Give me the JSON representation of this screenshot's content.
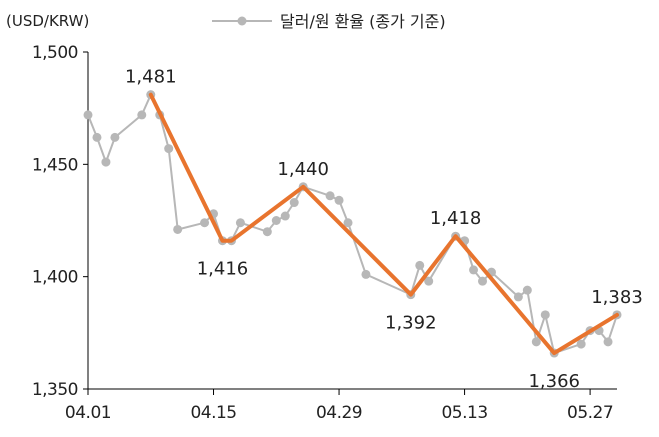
{
  "chart_data": {
    "type": "line",
    "unit_label": "(USD/KRW)",
    "legend": "달러/원 환율 (종가 기준)",
    "ylim": [
      1350,
      1500
    ],
    "yticks": [
      1500,
      1450,
      1400,
      1350
    ],
    "ytick_labels": [
      "1,500",
      "1,450",
      "1,400",
      "1,350"
    ],
    "xlim": [
      "2025-04-01",
      "2025-05-30"
    ],
    "xticks": [
      "2025-04-01",
      "2025-04-15",
      "2025-04-29",
      "2025-05-13",
      "2025-05-27"
    ],
    "xtick_labels": [
      "04.01",
      "04.15",
      "04.29",
      "05.13",
      "05.27"
    ],
    "grid": false,
    "legend_position": "top-center",
    "colors": {
      "series": "#b7b7b7",
      "trend": "#e8742e",
      "axis": "#000000"
    },
    "series": [
      {
        "name": "달러/원 환율 (종가 기준)",
        "points": [
          [
            "2025-04-01",
            1472
          ],
          [
            "2025-04-02",
            1462
          ],
          [
            "2025-04-03",
            1451
          ],
          [
            "2025-04-04",
            1462
          ],
          [
            "2025-04-07",
            1472
          ],
          [
            "2025-04-08",
            1481
          ],
          [
            "2025-04-09",
            1472
          ],
          [
            "2025-04-10",
            1457
          ],
          [
            "2025-04-11",
            1421
          ],
          [
            "2025-04-14",
            1424
          ],
          [
            "2025-04-15",
            1428
          ],
          [
            "2025-04-16",
            1416
          ],
          [
            "2025-04-17",
            1416
          ],
          [
            "2025-04-18",
            1424
          ],
          [
            "2025-04-21",
            1420
          ],
          [
            "2025-04-22",
            1425
          ],
          [
            "2025-04-23",
            1427
          ],
          [
            "2025-04-24",
            1433
          ],
          [
            "2025-04-25",
            1440
          ],
          [
            "2025-04-28",
            1436
          ],
          [
            "2025-04-29",
            1434
          ],
          [
            "2025-04-30",
            1424
          ],
          [
            "2025-05-02",
            1401
          ],
          [
            "2025-05-07",
            1392
          ],
          [
            "2025-05-08",
            1405
          ],
          [
            "2025-05-09",
            1398
          ],
          [
            "2025-05-12",
            1418
          ],
          [
            "2025-05-13",
            1416
          ],
          [
            "2025-05-14",
            1403
          ],
          [
            "2025-05-15",
            1398
          ],
          [
            "2025-05-16",
            1402
          ],
          [
            "2025-05-19",
            1391
          ],
          [
            "2025-05-20",
            1394
          ],
          [
            "2025-05-21",
            1371
          ],
          [
            "2025-05-22",
            1383
          ],
          [
            "2025-05-23",
            1366
          ],
          [
            "2025-05-26",
            1370
          ],
          [
            "2025-05-27",
            1376
          ],
          [
            "2025-05-28",
            1376
          ],
          [
            "2025-05-29",
            1371
          ],
          [
            "2025-05-30",
            1383
          ]
        ]
      }
    ],
    "trend_line": [
      [
        "2025-04-08",
        1481
      ],
      [
        "2025-04-16",
        1416
      ],
      [
        "2025-04-17",
        1416
      ],
      [
        "2025-04-25",
        1440
      ],
      [
        "2025-05-07",
        1392
      ],
      [
        "2025-05-12",
        1418
      ],
      [
        "2025-05-23",
        1366
      ],
      [
        "2025-05-30",
        1383
      ]
    ],
    "annotations": [
      {
        "text": "1,481",
        "date": "2025-04-08",
        "value": 1481,
        "position": "above"
      },
      {
        "text": "1,416",
        "date": "2025-04-16",
        "value": 1416,
        "position": "below"
      },
      {
        "text": "1,440",
        "date": "2025-04-25",
        "value": 1440,
        "position": "above"
      },
      {
        "text": "1,392",
        "date": "2025-05-07",
        "value": 1392,
        "position": "below"
      },
      {
        "text": "1,418",
        "date": "2025-05-12",
        "value": 1418,
        "position": "above"
      },
      {
        "text": "1,366",
        "date": "2025-05-23",
        "value": 1366,
        "position": "below"
      },
      {
        "text": "1,383",
        "date": "2025-05-30",
        "value": 1383,
        "position": "above"
      }
    ]
  }
}
